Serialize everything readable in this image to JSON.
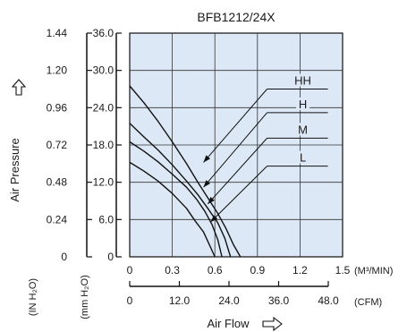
{
  "chart_data": {
    "type": "line",
    "title": "BFB1212/24X",
    "background_color": "#dce8f5",
    "line_color": "#111111",
    "grid": true,
    "y_left": {
      "label": "Air Pressure",
      "label_icon": "up-arrow-icon",
      "unit_in": "(IN H₂O)",
      "unit_mm": "(mm H₂O)",
      "ticks_in": [
        "0",
        "0.24",
        "0.48",
        "0.72",
        "0.96",
        "1.20",
        "1.44"
      ],
      "ticks_mm": [
        "0",
        "6.0",
        "12.0",
        "18.0",
        "24.0",
        "30.0",
        "36.0"
      ],
      "ylim_mm": [
        0,
        36
      ]
    },
    "x_axis": {
      "label": "Air Flow",
      "label_icon": "right-arrow-icon",
      "unit_m3": "(M³/MIN)",
      "unit_cfm": "(CFM)",
      "ticks_m3": [
        "0",
        "0.3",
        "0.6",
        "0.9",
        "1.2",
        "1.5"
      ],
      "ticks_cfm": [
        "0",
        "12.0",
        "24.0",
        "36.0",
        "48.0"
      ],
      "xlim_m3": [
        0,
        1.5
      ]
    },
    "series": [
      {
        "name": "HH",
        "x": [
          0,
          0.1,
          0.2,
          0.3,
          0.4,
          0.48,
          0.55,
          0.62,
          0.68,
          0.73,
          0.78
        ],
        "y": [
          27.5,
          24.8,
          21.8,
          18.5,
          15.0,
          12.0,
          9.5,
          7.0,
          4.5,
          2.0,
          0
        ]
      },
      {
        "name": "H",
        "x": [
          0,
          0.1,
          0.2,
          0.3,
          0.4,
          0.48,
          0.55,
          0.62,
          0.67,
          0.71
        ],
        "y": [
          21.5,
          19.3,
          17.2,
          14.8,
          12.2,
          10.0,
          7.8,
          5.5,
          3.0,
          0
        ]
      },
      {
        "name": "M",
        "x": [
          0,
          0.1,
          0.2,
          0.3,
          0.4,
          0.47,
          0.53,
          0.58,
          0.62,
          0.65
        ],
        "y": [
          18.5,
          17.0,
          15.3,
          13.3,
          11.2,
          9.3,
          7.3,
          5.2,
          2.8,
          0
        ]
      },
      {
        "name": "L",
        "x": [
          0,
          0.1,
          0.2,
          0.3,
          0.4,
          0.46,
          0.52,
          0.56,
          0.6
        ],
        "y": [
          15.2,
          13.8,
          12.2,
          10.2,
          7.8,
          5.8,
          4.0,
          2.0,
          0
        ]
      }
    ],
    "annotations": [
      {
        "name": "HH",
        "label_x": 1.22,
        "label_y": 27.0,
        "arrow_x": 0.52,
        "arrow_y": 15.2
      },
      {
        "name": "H",
        "label_x": 1.22,
        "label_y": 23.2,
        "arrow_x": 0.52,
        "arrow_y": 11.2
      },
      {
        "name": "M",
        "label_x": 1.22,
        "label_y": 19.1,
        "arrow_x": 0.55,
        "arrow_y": 8.5
      },
      {
        "name": "L",
        "label_x": 1.22,
        "label_y": 14.6,
        "arrow_x": 0.57,
        "arrow_y": 5.6
      }
    ]
  }
}
